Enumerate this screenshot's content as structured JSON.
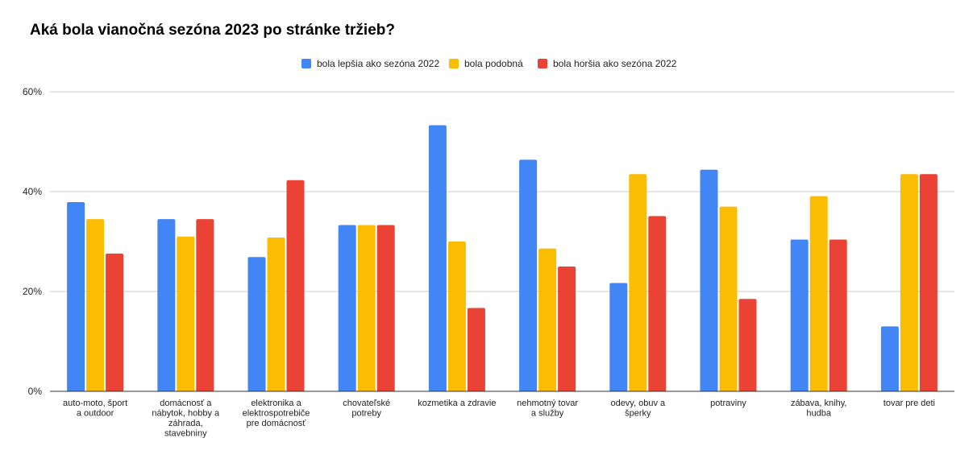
{
  "chart_data": {
    "type": "bar",
    "title": "Aká bola vianočná sezóna 2023 po stránke tržieb?",
    "categories": [
      "auto-moto, šport a outdoor",
      "domácnosť a nábytok, hobby a záhrada, stavebniny",
      "elektronika a elektrospotrebiče pre domácnosť",
      "chovateľské potreby",
      "kozmetika a zdravie",
      "nehmotný tovar a služby",
      "odevy, obuv a šperky",
      "potraviny",
      "zábava, knihy, hudba",
      "tovar pre deti"
    ],
    "category_label_lines": [
      [
        "auto-moto, šport",
        "a outdoor"
      ],
      [
        "domácnosť a",
        "nábytok, hobby a",
        "záhrada,",
        "stavebniny"
      ],
      [
        "elektronika a",
        "elektrospotrebiče",
        "pre domácnosť"
      ],
      [
        "chovateľské",
        "potreby"
      ],
      [
        "kozmetika a zdravie"
      ],
      [
        "nehmotný tovar",
        "a služby"
      ],
      [
        "odevy, obuv a",
        "šperky"
      ],
      [
        "potraviny"
      ],
      [
        "zábava, knihy,",
        "hudba"
      ],
      [
        "tovar pre deti"
      ]
    ],
    "series": [
      {
        "name": "bola lepšia ako sezóna 2022",
        "color": "#4285F4",
        "values": [
          37.9,
          34.5,
          26.9,
          33.3,
          53.3,
          46.4,
          21.7,
          44.4,
          30.4,
          13.0
        ]
      },
      {
        "name": "bola podobná",
        "color": "#FBBC04",
        "values": [
          34.5,
          31.0,
          30.8,
          33.3,
          30.0,
          28.6,
          43.5,
          37.0,
          39.1,
          43.5
        ]
      },
      {
        "name": "bola horšia ako sezóna 2022",
        "color": "#EA4335",
        "values": [
          27.6,
          34.5,
          42.3,
          33.3,
          16.7,
          25.0,
          35.1,
          18.5,
          30.4,
          43.5
        ]
      }
    ],
    "yticks": [
      "0%",
      "20%",
      "40%",
      "60%"
    ],
    "ytick_values": [
      0,
      20,
      40,
      60
    ],
    "ylim": [
      0,
      60
    ],
    "grid": true,
    "legend_position": "top-center",
    "xlabel": "",
    "ylabel": ""
  }
}
